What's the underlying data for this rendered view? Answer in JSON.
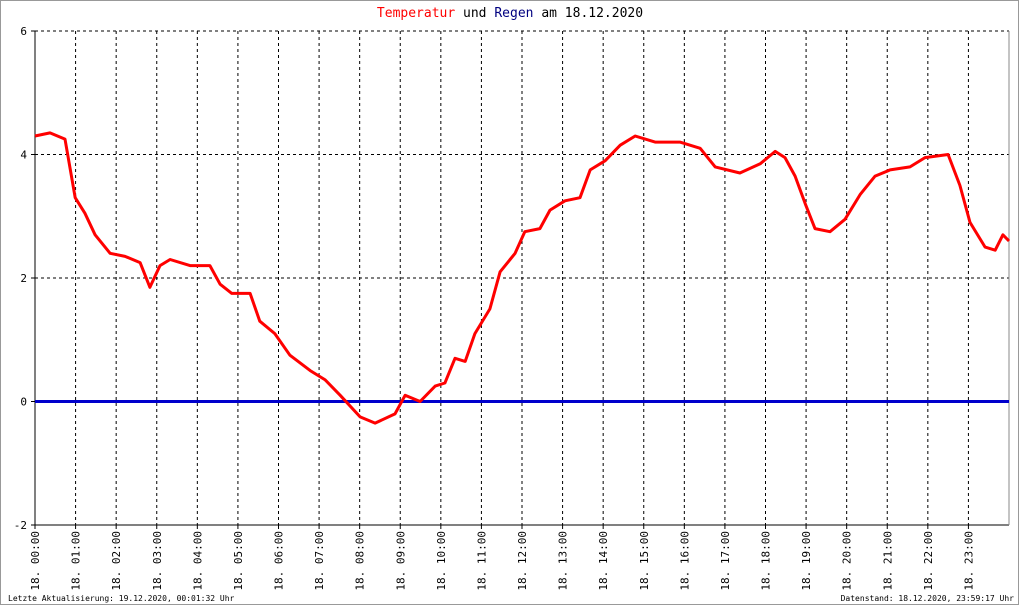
{
  "chart_data": {
    "type": "line",
    "title_word": "und",
    "title_suffix": "am 18.12.2020",
    "footer_left": "Letzte Aktualisierung: 19.12.2020, 00:01:32 Uhr",
    "footer_right": "Datenstand: 18.12.2020, 23:59:17 Uhr",
    "xlim": [
      0,
      24
    ],
    "ylim": [
      -2,
      6
    ],
    "yticks": [
      -2,
      0,
      2,
      4,
      6
    ],
    "grid": true,
    "xticks": [
      {
        "value": 0,
        "label": "18. 00:00"
      },
      {
        "value": 1,
        "label": "18. 01:00"
      },
      {
        "value": 2,
        "label": "18. 02:00"
      },
      {
        "value": 3,
        "label": "18. 03:00"
      },
      {
        "value": 4,
        "label": "18. 04:00"
      },
      {
        "value": 5,
        "label": "18. 05:00"
      },
      {
        "value": 6,
        "label": "18. 06:00"
      },
      {
        "value": 7,
        "label": "18. 07:00"
      },
      {
        "value": 8,
        "label": "18. 08:00"
      },
      {
        "value": 9,
        "label": "18. 09:00"
      },
      {
        "value": 10,
        "label": "18. 10:00"
      },
      {
        "value": 11,
        "label": "18. 11:00"
      },
      {
        "value": 12,
        "label": "18. 12:00"
      },
      {
        "value": 13,
        "label": "18. 13:00"
      },
      {
        "value": 14,
        "label": "18. 14:00"
      },
      {
        "value": 15,
        "label": "18. 15:00"
      },
      {
        "value": 16,
        "label": "18. 16:00"
      },
      {
        "value": 17,
        "label": "18. 17:00"
      },
      {
        "value": 18,
        "label": "18. 18:00"
      },
      {
        "value": 19,
        "label": "18. 19:00"
      },
      {
        "value": 20,
        "label": "18. 20:00"
      },
      {
        "value": 21,
        "label": "18. 21:00"
      },
      {
        "value": 22,
        "label": "18. 22:00"
      },
      {
        "value": 23,
        "label": "18. 23:00"
      }
    ],
    "series": [
      {
        "name": "Temperatur",
        "color": "#ff0000",
        "x": [
          0,
          0.37,
          0.74,
          0.99,
          1.23,
          1.48,
          1.85,
          2.22,
          2.59,
          2.83,
          3.08,
          3.33,
          3.82,
          4.31,
          4.56,
          4.85,
          5.3,
          5.54,
          5.91,
          6.28,
          6.78,
          7.15,
          7.52,
          8.01,
          8.38,
          8.87,
          9.12,
          9.49,
          9.86,
          10.1,
          10.35,
          10.6,
          10.84,
          11.21,
          11.46,
          11.83,
          12.07,
          12.44,
          12.69,
          13.06,
          13.43,
          13.68,
          14.05,
          14.42,
          14.79,
          15.28,
          15.89,
          16.39,
          16.76,
          17.37,
          17.87,
          18.24,
          18.48,
          18.73,
          18.98,
          19.22,
          19.59,
          19.96,
          20.33,
          20.7,
          21.07,
          21.56,
          21.93,
          22.5,
          22.79,
          23.04,
          23.41,
          23.66,
          23.85,
          24
        ],
        "values": [
          4.3,
          4.35,
          4.25,
          3.3,
          3.05,
          2.7,
          2.4,
          2.35,
          2.25,
          1.85,
          2.2,
          2.3,
          2.2,
          2.2,
          1.9,
          1.75,
          1.75,
          1.3,
          1.1,
          0.75,
          0.5,
          0.35,
          0.1,
          -0.25,
          -0.35,
          -0.2,
          0.1,
          0,
          0.25,
          0.3,
          0.7,
          0.65,
          1.1,
          1.5,
          2.1,
          2.4,
          2.75,
          2.8,
          3.1,
          3.25,
          3.3,
          3.75,
          3.9,
          4.15,
          4.3,
          4.2,
          4.2,
          4.1,
          3.8,
          3.7,
          3.85,
          4.05,
          3.95,
          3.65,
          3.2,
          2.8,
          2.75,
          2.95,
          3.35,
          3.65,
          3.75,
          3.8,
          3.95,
          4.0,
          3.5,
          2.9,
          2.5,
          2.45,
          2.7,
          2.6
        ]
      },
      {
        "name": "Regen",
        "color": "#0000cc",
        "title_color": "#000080",
        "x": [
          0,
          24
        ],
        "values": [
          0,
          0
        ]
      }
    ]
  }
}
